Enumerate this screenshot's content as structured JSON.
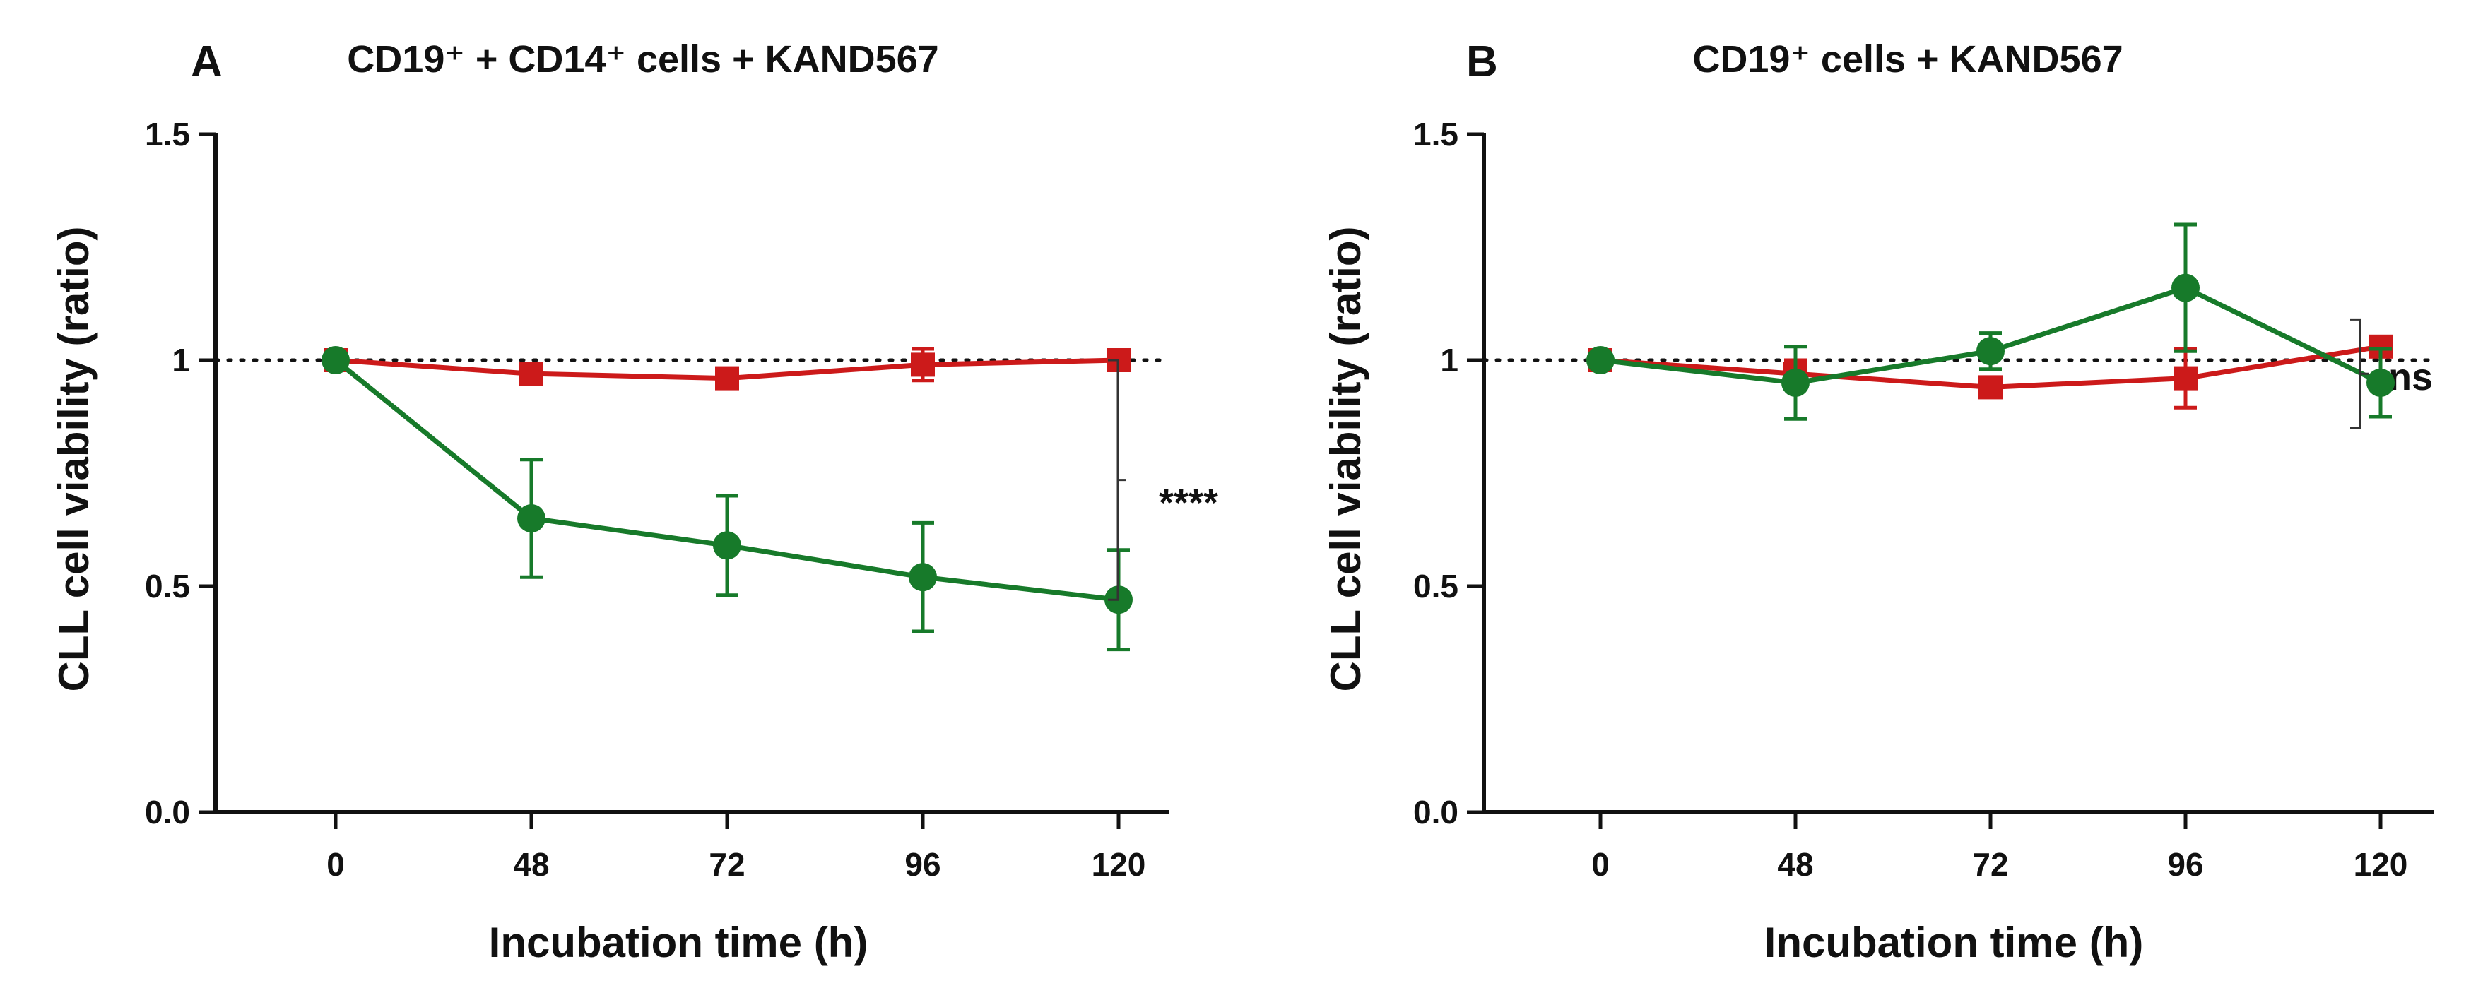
{
  "colors": {
    "red_series": "#cc1a1a",
    "green_series": "#177a2a",
    "axis": "#111111"
  },
  "chart_data": [
    {
      "type": "line",
      "panel_letter": "A",
      "title": "CD19⁺ + CD14⁺ cells + KAND567",
      "xlabel": "Incubation time (h)",
      "ylabel": "CLL cell viability (ratio)",
      "categories": [
        "0",
        "48",
        "72",
        "96",
        "120"
      ],
      "ylim": [
        0,
        1.5
      ],
      "yticks": [
        "0.0",
        "0.5",
        "1",
        "1.5"
      ],
      "reference_line": 1,
      "series": [
        {
          "marker": "square",
          "color": "#cc1a1a",
          "values": [
            1.0,
            0.97,
            0.96,
            0.99,
            1.0
          ],
          "errors": [
            0.0,
            0.015,
            0.015,
            0.035,
            0.015
          ]
        },
        {
          "marker": "circle",
          "color": "#177a2a",
          "values": [
            1.0,
            0.65,
            0.59,
            0.52,
            0.47
          ],
          "errors": [
            0.0,
            0.13,
            0.11,
            0.12,
            0.11
          ]
        }
      ],
      "significance": {
        "label": "****",
        "y_range": [
          0.47,
          1.0
        ]
      }
    },
    {
      "type": "line",
      "panel_letter": "B",
      "title": "CD19⁺ cells + KAND567",
      "xlabel": "Incubation time (h)",
      "ylabel": "CLL cell viability (ratio)",
      "categories": [
        "0",
        "48",
        "72",
        "96",
        "120"
      ],
      "ylim": [
        0,
        1.5
      ],
      "yticks": [
        "0.0",
        "0.5",
        "1",
        "1.5"
      ],
      "reference_line": 1,
      "series": [
        {
          "marker": "square",
          "color": "#cc1a1a",
          "values": [
            1.0,
            0.97,
            0.94,
            0.96,
            1.03
          ],
          "errors": [
            0.0,
            0.03,
            0.02,
            0.065,
            0.015
          ]
        },
        {
          "marker": "circle",
          "color": "#177a2a",
          "values": [
            1.0,
            0.95,
            1.02,
            1.16,
            0.95
          ],
          "errors": [
            0.0,
            0.08,
            0.04,
            0.14,
            0.075
          ]
        }
      ],
      "significance": {
        "label": "ns",
        "y_range": [
          0.85,
          1.09
        ]
      }
    }
  ]
}
